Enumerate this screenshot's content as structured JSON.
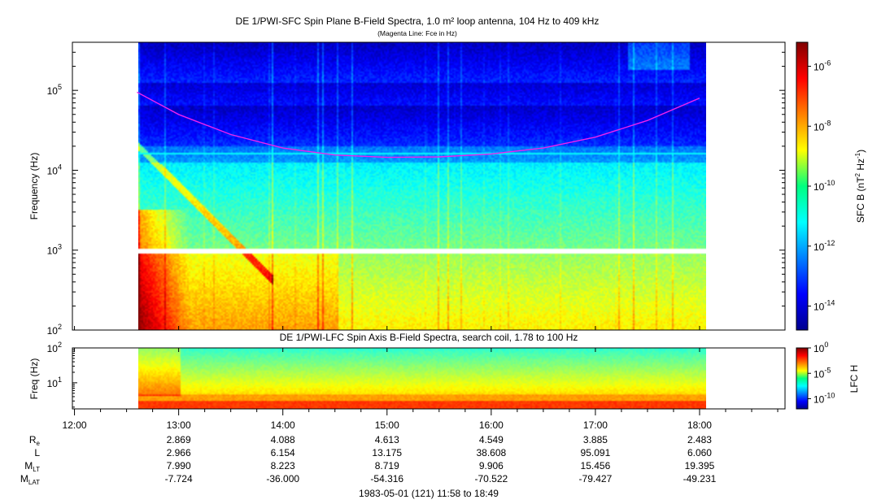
{
  "chart_data": [
    {
      "type": "heatmap",
      "title": "DE 1/PWI-SFC  Spin Plane B-Field Spectra, 1.0 m² loop antenna, 104 Hz to 409 kHz",
      "subtitle": "(Magenta Line: Fce in Hz)",
      "ylabel": "Frequency (Hz)",
      "yscale": "log",
      "ylim": [
        100,
        400000
      ],
      "ytick_labels": [
        {
          "value": 100,
          "base": "10",
          "exp": "2"
        },
        {
          "value": 1000,
          "base": "10",
          "exp": "3"
        },
        {
          "value": 10000,
          "base": "10",
          "exp": "4"
        },
        {
          "value": 100000,
          "base": "10",
          "exp": "5"
        }
      ],
      "data_time_range_hours": [
        12.6,
        18.05
      ],
      "gap_frequency_range_hz": [
        900,
        1020
      ],
      "overlay": {
        "color": "#ee22ee",
        "x_hours": [
          12.6,
          13.0,
          13.5,
          14.0,
          14.5,
          15.0,
          15.5,
          16.0,
          16.5,
          17.0,
          17.5,
          18.0
        ],
        "fce_hz": [
          95000,
          50000,
          28000,
          19000,
          15500,
          14500,
          14700,
          16000,
          19000,
          26000,
          42000,
          80000
        ]
      },
      "horizontal_line": {
        "frequency_hz": 16000,
        "color": "#7fe8ff"
      },
      "colorbar": {
        "label_base": "SFC B (nT",
        "label_exp1": "2",
        "label_mid": " Hz",
        "label_exp2": "-1",
        "label_end": ")",
        "scale": "log",
        "range_exp": [
          -14.8,
          -5.2
        ],
        "ticks": [
          {
            "base": "10",
            "exp": "-6",
            "value_exp": -6
          },
          {
            "base": "10",
            "exp": "-8",
            "value_exp": -8
          },
          {
            "base": "10",
            "exp": "-10",
            "value_exp": -10
          },
          {
            "base": "10",
            "exp": "-12",
            "value_exp": -12
          },
          {
            "base": "10",
            "exp": "-14",
            "value_exp": -14
          }
        ]
      }
    },
    {
      "type": "heatmap",
      "title": "DE 1/PWI-LFC  Spin Axis B-Field Spectra, search coil, 1.78 to 100 Hz",
      "ylabel": "Freq (Hz)",
      "yscale": "log",
      "ylim": [
        1.78,
        100
      ],
      "ytick_labels": [
        {
          "value": 10,
          "base": "10",
          "exp": "1"
        },
        {
          "value": 100,
          "base": "10",
          "exp": "2"
        }
      ],
      "data_time_range_hours": [
        12.6,
        18.05
      ],
      "colorbar": {
        "label": "LFC H",
        "scale": "log",
        "range_exp": [
          -12,
          0
        ],
        "ticks": [
          {
            "base": "10",
            "exp": "0",
            "value_exp": 0
          },
          {
            "base": "10",
            "exp": "-5",
            "value_exp": -5
          },
          {
            "base": "10",
            "exp": "-10",
            "value_exp": -10
          }
        ]
      }
    }
  ],
  "time_axis": {
    "range_hours": [
      11.98,
      18.82
    ],
    "tick_hours": [
      12,
      13,
      14,
      15,
      16,
      17,
      18
    ],
    "tick_labels": [
      "12:00",
      "13:00",
      "14:00",
      "15:00",
      "16:00",
      "17:00",
      "18:00"
    ]
  },
  "ephemeris": [
    {
      "label": "R",
      "sub": "e",
      "values": [
        "2.869",
        "4.088",
        "4.613",
        "4.549",
        "3.885",
        "2.483"
      ]
    },
    {
      "label": "L",
      "sub": "",
      "values": [
        "2.966",
        "6.154",
        "13.175",
        "38.608",
        "95.091",
        "6.060"
      ]
    },
    {
      "label": "M",
      "sub": "LT",
      "values": [
        "7.990",
        "8.223",
        "8.719",
        "9.906",
        "15.456",
        "19.395"
      ]
    },
    {
      "label": "M",
      "sub": "LAT",
      "values": [
        "-7.724",
        "-36.000",
        "-54.316",
        "-70.522",
        "-79.427",
        "-49.231"
      ]
    }
  ],
  "footer": "1983-05-01 (121) 11:58 to 18:49"
}
